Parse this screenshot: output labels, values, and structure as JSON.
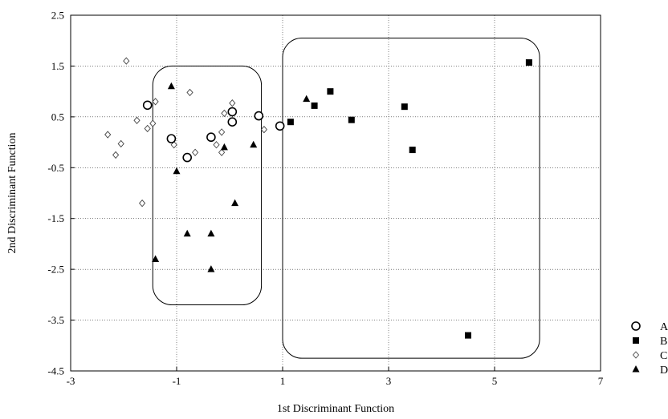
{
  "chart_data": {
    "type": "scatter",
    "xlabel": "1st Discriminant Function",
    "ylabel": "2nd Discriminant Function",
    "xlim": [
      -3,
      7
    ],
    "ylim": [
      -4.5,
      2.5
    ],
    "x_ticks": [
      -3,
      -1,
      1,
      3,
      5,
      7
    ],
    "y_ticks": [
      2.5,
      1.5,
      0.5,
      -0.5,
      -1.5,
      -2.5,
      -3.5,
      -4.5
    ],
    "grid": true,
    "legend_position": "right-bottom",
    "series": [
      {
        "name": "A",
        "marker": "open-circle",
        "points": [
          [
            -1.55,
            0.73
          ],
          [
            -1.1,
            0.07
          ],
          [
            -0.8,
            -0.3
          ],
          [
            -0.35,
            0.1
          ],
          [
            0.05,
            0.6
          ],
          [
            0.05,
            0.4
          ],
          [
            0.55,
            0.52
          ],
          [
            0.95,
            0.32
          ]
        ]
      },
      {
        "name": "B",
        "marker": "filled-square",
        "points": [
          [
            1.15,
            0.4
          ],
          [
            1.6,
            0.72
          ],
          [
            1.9,
            1.0
          ],
          [
            2.3,
            0.44
          ],
          [
            3.3,
            0.7
          ],
          [
            3.45,
            -0.15
          ],
          [
            4.5,
            -3.8
          ],
          [
            5.65,
            1.57
          ]
        ]
      },
      {
        "name": "C",
        "marker": "open-diamond",
        "points": [
          [
            -2.3,
            0.15
          ],
          [
            -2.15,
            -0.25
          ],
          [
            -2.05,
            -0.03
          ],
          [
            -1.95,
            1.6
          ],
          [
            -1.75,
            0.43
          ],
          [
            -1.65,
            -1.2
          ],
          [
            -1.55,
            0.27
          ],
          [
            -1.45,
            0.37
          ],
          [
            -1.4,
            0.8
          ],
          [
            -1.05,
            -0.05
          ],
          [
            -0.75,
            0.98
          ],
          [
            -0.65,
            -0.2
          ],
          [
            -0.25,
            -0.05
          ],
          [
            -0.15,
            0.2
          ],
          [
            -0.15,
            -0.2
          ],
          [
            -0.1,
            0.57
          ],
          [
            0.05,
            0.77
          ],
          [
            0.65,
            0.25
          ]
        ]
      },
      {
        "name": "D",
        "marker": "filled-triangle",
        "points": [
          [
            -1.4,
            -2.3
          ],
          [
            -1.1,
            1.1
          ],
          [
            -1.0,
            -0.57
          ],
          [
            -0.8,
            -1.8
          ],
          [
            -0.35,
            -1.8
          ],
          [
            -0.35,
            -2.5
          ],
          [
            -0.1,
            -0.1
          ],
          [
            0.1,
            -1.2
          ],
          [
            0.45,
            -0.05
          ],
          [
            1.45,
            0.85
          ]
        ]
      }
    ],
    "group_boundaries": [
      {
        "x": [
          -1.45,
          0.6
        ],
        "y": [
          -3.2,
          1.5
        ],
        "shape": "rounded-rectangle"
      },
      {
        "x": [
          1.0,
          5.85
        ],
        "y": [
          -4.25,
          2.05
        ],
        "shape": "rounded-rectangle"
      }
    ]
  }
}
